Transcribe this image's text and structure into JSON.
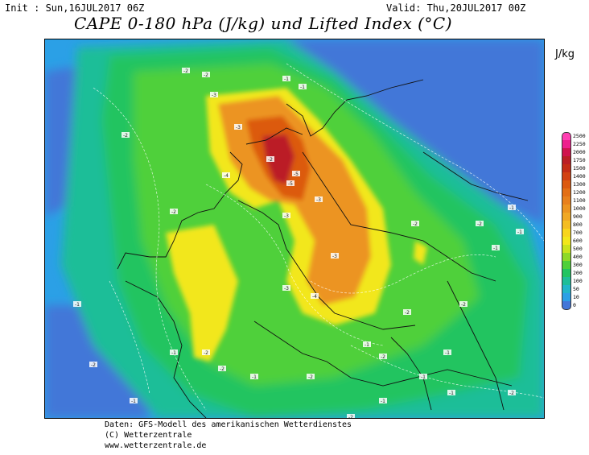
{
  "header": {
    "init": "Init : Sun,16JUL2017 06Z",
    "valid": "Valid: Thu,20JUL2017 00Z",
    "title": "CAPE 0-180 hPa (J/kg) und Lifted Index (°C)"
  },
  "legend": {
    "unit": "J/kg",
    "levels": [
      {
        "label": "2500",
        "color": "#ff3fb2"
      },
      {
        "label": "2250",
        "color": "#ee1f8d"
      },
      {
        "label": "2000",
        "color": "#d0134e"
      },
      {
        "label": "1750",
        "color": "#bb1e25"
      },
      {
        "label": "1500",
        "color": "#c42c16"
      },
      {
        "label": "1400",
        "color": "#d24112"
      },
      {
        "label": "1300",
        "color": "#dc5a10"
      },
      {
        "label": "1200",
        "color": "#e36f15"
      },
      {
        "label": "1100",
        "color": "#e8801c"
      },
      {
        "label": "1000",
        "color": "#ec9420"
      },
      {
        "label": "900",
        "color": "#f0a824"
      },
      {
        "label": "800",
        "color": "#f4bd22"
      },
      {
        "label": "700",
        "color": "#f8d51c"
      },
      {
        "label": "600",
        "color": "#f2e71a"
      },
      {
        "label": "500",
        "color": "#c9e31c"
      },
      {
        "label": "400",
        "color": "#8ed927"
      },
      {
        "label": "300",
        "color": "#4fd03a"
      },
      {
        "label": "200",
        "color": "#22c461"
      },
      {
        "label": "100",
        "color": "#1fbe98"
      },
      {
        "label": "50",
        "color": "#22b6c9"
      },
      {
        "label": "10",
        "color": "#2ba0e6"
      },
      {
        "label": "0",
        "color": "#4377d8"
      }
    ]
  },
  "lifted_index_labels": [
    {
      "text": "-2"
    },
    {
      "text": "-2"
    },
    {
      "text": "-1"
    },
    {
      "text": "-1"
    },
    {
      "text": "-2"
    },
    {
      "text": "-3"
    },
    {
      "text": "-3"
    },
    {
      "text": "-2"
    },
    {
      "text": "-4"
    },
    {
      "text": "-5"
    },
    {
      "text": "-5"
    },
    {
      "text": "-3"
    },
    {
      "text": "-3"
    },
    {
      "text": "-2"
    },
    {
      "text": "-3"
    },
    {
      "text": "-4"
    },
    {
      "text": "-3"
    },
    {
      "text": "-2"
    },
    {
      "text": "-2"
    },
    {
      "text": "-1"
    },
    {
      "text": "-1"
    },
    {
      "text": "-2"
    },
    {
      "text": "-1"
    },
    {
      "text": "-2"
    },
    {
      "text": "-1"
    },
    {
      "text": "-1"
    },
    {
      "text": "-2"
    },
    {
      "text": "-2"
    },
    {
      "text": "-1"
    },
    {
      "text": "-1"
    },
    {
      "text": "-2"
    },
    {
      "text": "-1"
    },
    {
      "text": "-1"
    },
    {
      "text": "-2"
    },
    {
      "text": "-1"
    },
    {
      "text": "-2"
    },
    {
      "text": "-1"
    },
    {
      "text": "-2"
    },
    {
      "text": "-1"
    },
    {
      "text": "-2"
    }
  ],
  "footer": {
    "line1": "Daten: GFS-Modell des amerikanischen Wetterdienstes",
    "line2": "(C) Wetterzentrale",
    "line3": "www.wetterzentrale.de"
  }
}
